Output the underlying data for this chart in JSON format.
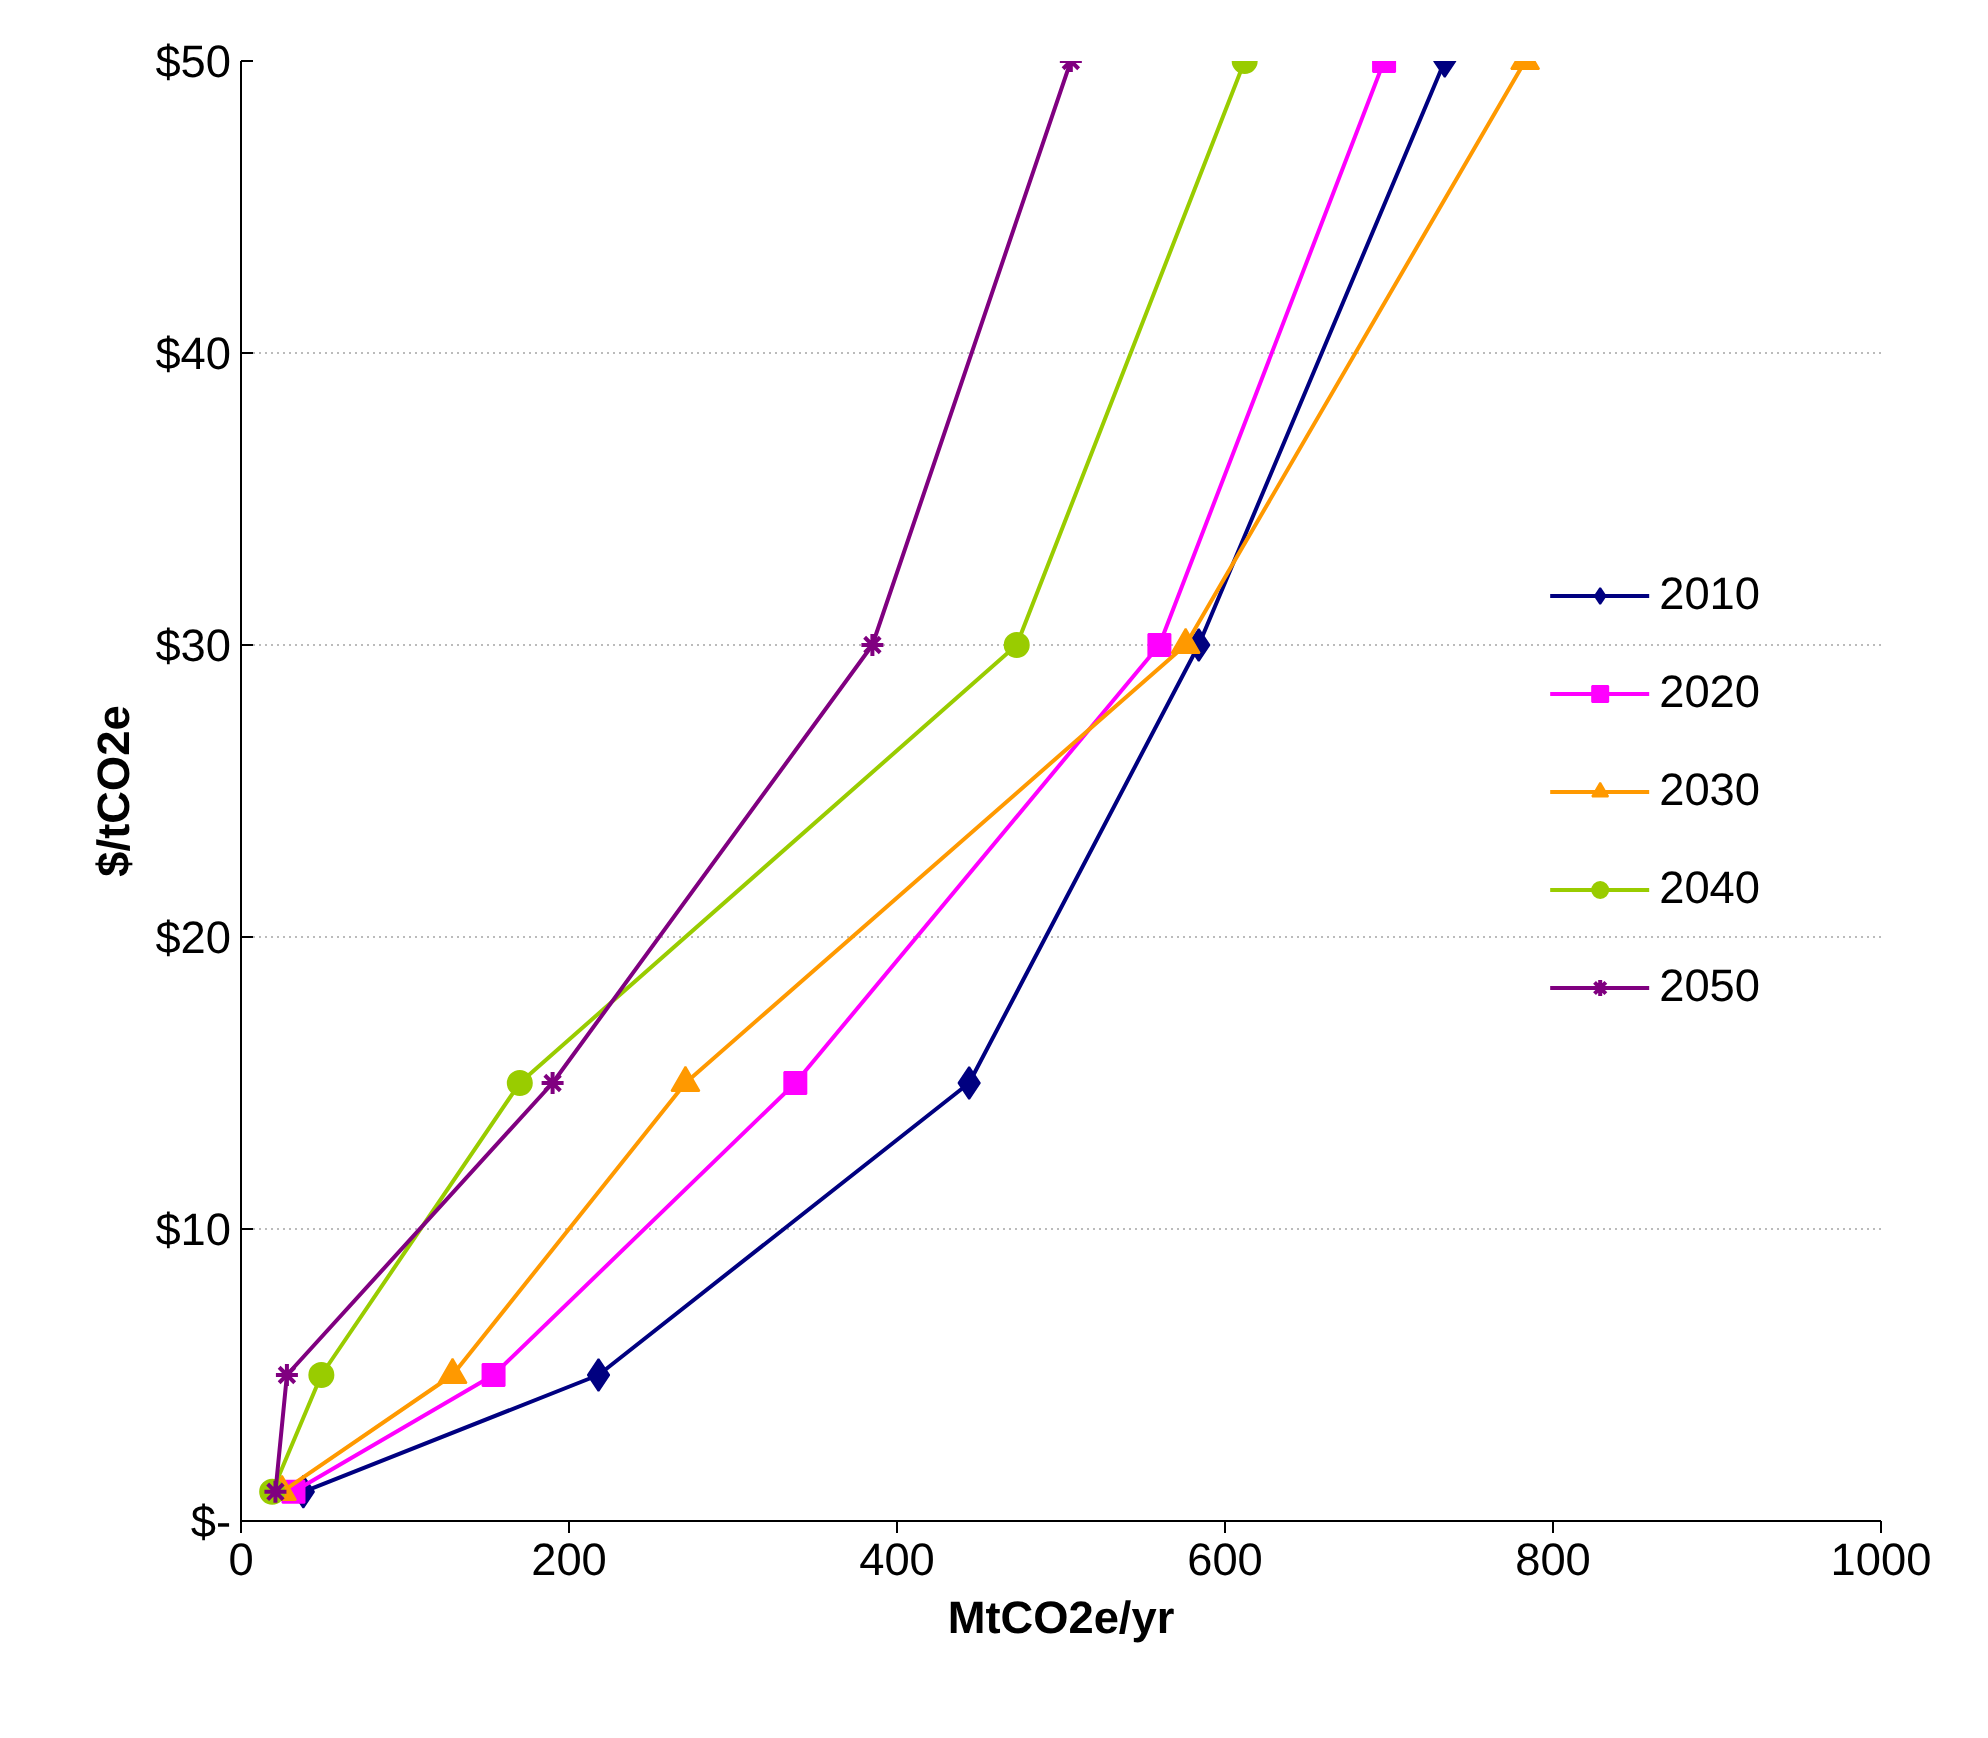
{
  "chart_data": {
    "type": "line",
    "xlabel": "MtCO2e/yr",
    "ylabel": "$/tCO2e",
    "xlim": [
      0,
      1000
    ],
    "xticks": [
      0,
      200,
      400,
      600,
      800,
      1000
    ],
    "ylim": [
      0,
      50
    ],
    "yticks": [
      {
        "value": 0,
        "label": "$-"
      },
      {
        "value": 10,
        "label": "$10"
      },
      {
        "value": 20,
        "label": "$20"
      },
      {
        "value": 30,
        "label": "$30"
      },
      {
        "value": 40,
        "label": "$40"
      },
      {
        "value": 50,
        "label": "$50"
      }
    ],
    "grid": "y",
    "legend": "right",
    "line_style": "solid",
    "series": [
      {
        "name": "2010",
        "color": "#000080",
        "marker": "diamond",
        "x": [
          38,
          218,
          444,
          584,
          734
        ],
        "values": [
          1,
          5,
          15,
          30,
          50
        ]
      },
      {
        "name": "2020",
        "color": "#ff00ff",
        "marker": "square",
        "x": [
          32,
          154,
          338,
          560,
          697
        ],
        "values": [
          1,
          5,
          15,
          30,
          50
        ]
      },
      {
        "name": "2030",
        "color": "#ff9900",
        "marker": "triangle",
        "x": [
          25,
          129,
          271,
          576,
          783
        ],
        "values": [
          1,
          5,
          15,
          30,
          50
        ]
      },
      {
        "name": "2040",
        "color": "#99cc00",
        "marker": "circle",
        "x": [
          19,
          49,
          170,
          473,
          612
        ],
        "values": [
          1,
          5,
          15,
          30,
          50
        ]
      },
      {
        "name": "2050",
        "color": "#800080",
        "marker": "cross",
        "x": [
          21,
          28,
          190,
          385,
          506
        ],
        "values": [
          1,
          5,
          15,
          30,
          50
        ]
      }
    ]
  }
}
